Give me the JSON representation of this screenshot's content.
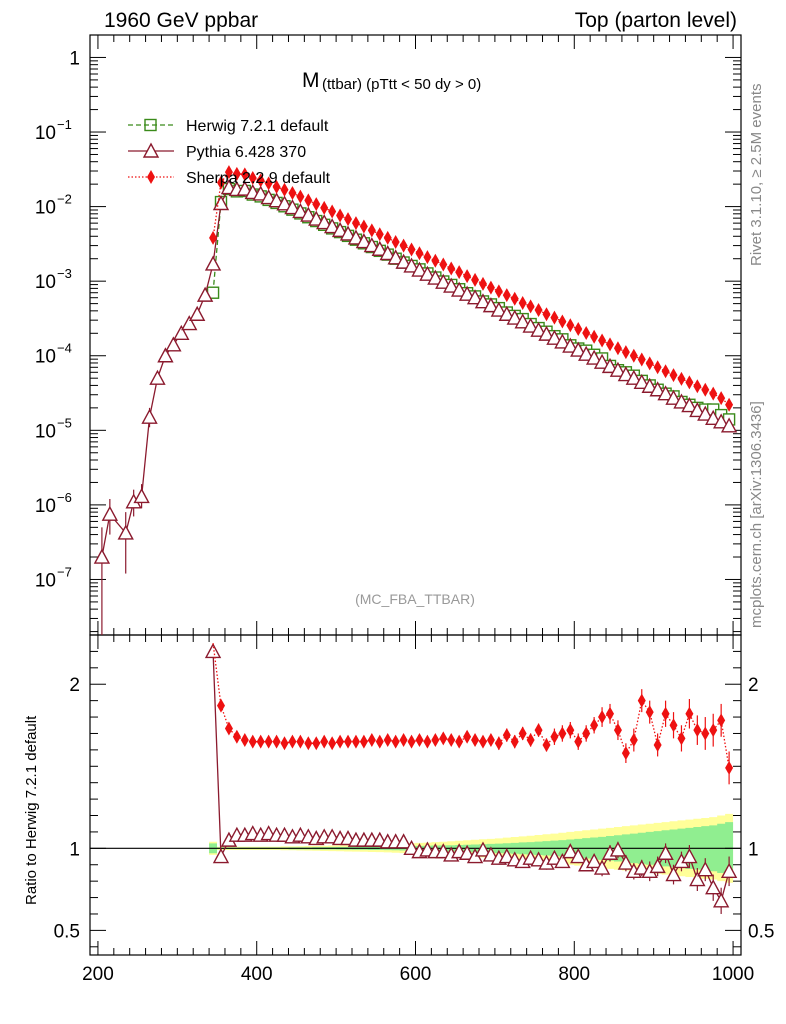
{
  "header": {
    "left": "1960 GeV ppbar",
    "right": "Top (parton level)"
  },
  "side_text": {
    "top": "Rivet 3.1.10, ≥ 2.5M events",
    "bottom": "mcplots.cern.ch [arXiv:1306.3436]"
  },
  "plot_title": {
    "main": "M",
    "sub": "(ttbar)  (pTtt < 50 dy > 0)"
  },
  "watermark": "(MC_FBA_TTBAR)",
  "ratio_ylabel": "Ratio to Herwig 7.2.1 default",
  "colors": {
    "herwig": "#3a8a1a",
    "pythia": "#8b1a2e",
    "sherpa": "#ee1111",
    "band_green": "#90ee90",
    "band_yellow": "#ffff99"
  },
  "chart_data": {
    "type": "line",
    "x_tick_labels": [
      "200",
      "400",
      "600",
      "800",
      "1000"
    ],
    "xlim": [
      190,
      1010
    ],
    "main": {
      "scale": "log",
      "ylim": [
        1.8e-08,
        2.0
      ],
      "y_tick_labels": [
        {
          "value": 1,
          "base": "1",
          "exp": ""
        },
        {
          "value": 0.1,
          "base": "10",
          "exp": "−1"
        },
        {
          "value": 0.01,
          "base": "10",
          "exp": "−2"
        },
        {
          "value": 0.001,
          "base": "10",
          "exp": "−3"
        },
        {
          "value": 0.0001,
          "base": "10",
          "exp": "−4"
        },
        {
          "value": 1e-05,
          "base": "10",
          "exp": "−5"
        },
        {
          "value": 1e-06,
          "base": "10",
          "exp": "−6"
        },
        {
          "value": 1e-07,
          "base": "10",
          "exp": "−7"
        }
      ]
    },
    "ratio": {
      "scale": "linear",
      "ylim": [
        0.35,
        2.3
      ],
      "y_tick_labels": [
        {
          "value": 2,
          "label": "2"
        },
        {
          "value": 1,
          "label": "1"
        },
        {
          "value": 0.5,
          "label": "0.5"
        }
      ]
    },
    "legend": [
      "Herwig 7.2.1 default",
      "Pythia 6.428 370",
      "Sherpa 2.2.9 default"
    ],
    "series": [
      {
        "name": "Pythia 6.428 370",
        "key": "pythia",
        "marker": "triangle",
        "x": [
          205,
          215,
          235,
          245,
          255,
          265,
          275,
          285,
          295,
          305,
          315,
          325,
          335,
          345,
          355,
          365,
          375,
          385,
          395,
          405,
          415,
          425,
          435,
          445,
          455,
          465,
          475,
          485,
          495,
          505,
          515,
          525,
          535,
          545,
          555,
          565,
          575,
          585,
          595,
          605,
          615,
          625,
          635,
          645,
          655,
          665,
          675,
          685,
          695,
          705,
          715,
          725,
          735,
          745,
          755,
          765,
          775,
          785,
          795,
          805,
          815,
          825,
          835,
          845,
          855,
          865,
          875,
          885,
          895,
          905,
          915,
          925,
          935,
          945,
          955,
          965,
          975,
          985,
          995
        ],
        "y": [
          2e-07,
          7.5e-07,
          4.2e-07,
          1.1e-06,
          1.3e-06,
          1.5e-05,
          5e-05,
          0.0001,
          0.00014,
          0.0002,
          0.00027,
          0.00036,
          0.00065,
          0.0017,
          0.011,
          0.018,
          0.017,
          0.0172,
          0.0155,
          0.0148,
          0.0132,
          0.012,
          0.0109,
          0.0097,
          0.0086,
          0.0077,
          0.0068,
          0.0061,
          0.0054,
          0.0048,
          0.0043,
          0.0038,
          0.0034,
          0.003,
          0.00268,
          0.00235,
          0.00206,
          0.0018,
          0.0016,
          0.00141,
          0.00124,
          0.0011,
          0.00097,
          0.00086,
          0.00076,
          0.00067,
          0.0006,
          0.00053,
          0.00047,
          0.00041,
          0.00036,
          0.00032,
          0.000285,
          0.00025,
          0.00022,
          0.000195,
          0.000172,
          0.000153,
          0.000135,
          0.000119,
          0.000105,
          9.3e-05,
          8.2e-05,
          7.2e-05,
          6.4e-05,
          5.6e-05,
          5e-05,
          4.4e-05,
          3.9e-05,
          3.5e-05,
          3.1e-05,
          2.7e-05,
          2.4e-05,
          2.15e-05,
          1.85e-05,
          1.65e-05,
          1.45e-05,
          1.3e-05,
          1.15e-05
        ],
        "ratio_x": [
          345,
          355,
          365,
          375,
          385,
          395,
          405,
          415,
          425,
          435,
          445,
          455,
          465,
          475,
          485,
          495,
          505,
          515,
          525,
          535,
          545,
          555,
          565,
          575,
          585,
          595,
          605,
          615,
          625,
          635,
          645,
          655,
          665,
          675,
          685,
          695,
          705,
          715,
          725,
          735,
          745,
          755,
          765,
          775,
          785,
          795,
          805,
          815,
          825,
          835,
          845,
          855,
          865,
          875,
          885,
          895,
          905,
          915,
          925,
          935,
          945,
          955,
          965,
          975,
          985,
          995
        ],
        "ratio": [
          2.2,
          0.95,
          1.05,
          1.08,
          1.08,
          1.09,
          1.08,
          1.09,
          1.08,
          1.08,
          1.07,
          1.08,
          1.07,
          1.06,
          1.07,
          1.07,
          1.06,
          1.06,
          1.05,
          1.05,
          1.05,
          1.05,
          1.04,
          1.04,
          1.04,
          1.0,
          0.98,
          0.99,
          0.98,
          0.98,
          0.96,
          0.98,
          0.97,
          0.95,
          0.99,
          0.96,
          0.94,
          0.95,
          0.93,
          0.92,
          0.94,
          0.93,
          0.91,
          0.94,
          0.92,
          0.98,
          0.95,
          0.9,
          0.92,
          0.88,
          0.97,
          0.99,
          0.91,
          0.86,
          0.88,
          0.86,
          0.89,
          0.97,
          0.84,
          0.92,
          0.95,
          0.81,
          0.87,
          0.76,
          0.68,
          0.86
        ],
        "ratio_err": [
          0,
          0.02,
          0.02,
          0.02,
          0.02,
          0.02,
          0.02,
          0.02,
          0.02,
          0.02,
          0.02,
          0.02,
          0.02,
          0.02,
          0.02,
          0.02,
          0.02,
          0.02,
          0.02,
          0.02,
          0.02,
          0.02,
          0.02,
          0.02,
          0.02,
          0.02,
          0.02,
          0.02,
          0.02,
          0.02,
          0.03,
          0.03,
          0.03,
          0.03,
          0.03,
          0.03,
          0.03,
          0.03,
          0.03,
          0.03,
          0.03,
          0.04,
          0.04,
          0.04,
          0.04,
          0.04,
          0.04,
          0.04,
          0.04,
          0.05,
          0.05,
          0.05,
          0.05,
          0.05,
          0.05,
          0.06,
          0.06,
          0.06,
          0.06,
          0.06,
          0.07,
          0.07,
          0.07,
          0.08,
          0.08,
          0.09
        ]
      },
      {
        "name": "Herwig 7.2.1 default",
        "key": "herwig",
        "marker": "square",
        "x": [
          345,
          355,
          365,
          375,
          385,
          395,
          405,
          415,
          425,
          435,
          445,
          455,
          465,
          475,
          485,
          495,
          505,
          515,
          525,
          535,
          545,
          555,
          565,
          575,
          585,
          595,
          605,
          615,
          625,
          635,
          645,
          655,
          665,
          675,
          685,
          695,
          705,
          715,
          725,
          735,
          745,
          755,
          765,
          775,
          785,
          795,
          805,
          815,
          825,
          835,
          845,
          855,
          865,
          875,
          885,
          895,
          905,
          915,
          925,
          935,
          945,
          955,
          965,
          975,
          985,
          995
        ],
        "y": [
          0.0007,
          0.0115,
          0.0172,
          0.016,
          0.0162,
          0.0145,
          0.0137,
          0.0123,
          0.0112,
          0.0101,
          0.0091,
          0.0081,
          0.0072,
          0.0064,
          0.0057,
          0.0051,
          0.00455,
          0.00405,
          0.0036,
          0.00322,
          0.00287,
          0.00255,
          0.00227,
          0.002,
          0.00178,
          0.0016,
          0.00144,
          0.00127,
          0.00112,
          0.00099,
          0.00089,
          0.00078,
          0.00069,
          0.000625,
          0.000535,
          0.000488,
          0.000435,
          0.00038,
          0.000342,
          0.00031,
          0.000266,
          0.000235,
          0.00021,
          0.000183,
          0.000166,
          0.000138,
          0.000125,
          0.000117,
          0.000103,
          9.2e-05,
          7.3e-05,
          6.4e-05,
          6e-05,
          5.4e-05,
          4.6e-05,
          4e-05,
          3.5e-05,
          3.1e-05,
          2.85e-05,
          2.4e-05,
          2.2e-05,
          2e-05,
          1.9e-05,
          1.9e-05,
          1.6e-05,
          1.4e-05
        ],
        "band_x": [
          345,
          355,
          365,
          375,
          385,
          395,
          405,
          415,
          425,
          435,
          445,
          455,
          465,
          475,
          485,
          495,
          505,
          515,
          525,
          535,
          545,
          555,
          565,
          575,
          585,
          595,
          605,
          615,
          625,
          635,
          645,
          655,
          665,
          675,
          685,
          695,
          705,
          715,
          725,
          735,
          745,
          755,
          765,
          775,
          785,
          795,
          805,
          815,
          825,
          835,
          845,
          855,
          865,
          875,
          885,
          895,
          905,
          915,
          925,
          935,
          945,
          955,
          965,
          975,
          985,
          995
        ],
        "band_stat": [
          0.03,
          0.005,
          0.005,
          0.005,
          0.005,
          0.005,
          0.005,
          0.005,
          0.005,
          0.005,
          0.006,
          0.006,
          0.006,
          0.007,
          0.007,
          0.007,
          0.008,
          0.008,
          0.009,
          0.009,
          0.01,
          0.01,
          0.011,
          0.012,
          0.013,
          0.014,
          0.015,
          0.016,
          0.017,
          0.018,
          0.019,
          0.02,
          0.022,
          0.023,
          0.025,
          0.027,
          0.029,
          0.031,
          0.033,
          0.036,
          0.038,
          0.041,
          0.044,
          0.047,
          0.05,
          0.054,
          0.058,
          0.062,
          0.066,
          0.07,
          0.075,
          0.08,
          0.085,
          0.09,
          0.095,
          0.1,
          0.105,
          0.11,
          0.115,
          0.12,
          0.125,
          0.13,
          0.135,
          0.14,
          0.15,
          0.16
        ],
        "band_tot": [
          0.04,
          0.01,
          0.01,
          0.01,
          0.01,
          0.01,
          0.01,
          0.01,
          0.01,
          0.012,
          0.012,
          0.013,
          0.014,
          0.015,
          0.016,
          0.017,
          0.018,
          0.019,
          0.02,
          0.021,
          0.022,
          0.023,
          0.025,
          0.027,
          0.029,
          0.031,
          0.033,
          0.035,
          0.038,
          0.04,
          0.043,
          0.046,
          0.049,
          0.052,
          0.055,
          0.058,
          0.061,
          0.065,
          0.069,
          0.073,
          0.077,
          0.081,
          0.086,
          0.09,
          0.095,
          0.1,
          0.105,
          0.11,
          0.115,
          0.12,
          0.125,
          0.13,
          0.135,
          0.14,
          0.145,
          0.15,
          0.155,
          0.16,
          0.165,
          0.17,
          0.175,
          0.18,
          0.185,
          0.19,
          0.2,
          0.21
        ]
      },
      {
        "name": "Sherpa 2.2.9 default",
        "key": "sherpa",
        "marker": "diamond",
        "x": [
          345,
          355,
          365,
          375,
          385,
          395,
          405,
          415,
          425,
          435,
          445,
          455,
          465,
          475,
          485,
          495,
          505,
          515,
          525,
          535,
          545,
          555,
          565,
          575,
          585,
          595,
          605,
          615,
          625,
          635,
          645,
          655,
          665,
          675,
          685,
          695,
          705,
          715,
          725,
          735,
          745,
          755,
          765,
          775,
          785,
          795,
          805,
          815,
          825,
          835,
          845,
          855,
          865,
          875,
          885,
          895,
          905,
          915,
          925,
          935,
          945,
          955,
          965,
          975,
          985,
          995
        ],
        "y": [
          0.0038,
          0.021,
          0.029,
          0.0275,
          0.027,
          0.0242,
          0.0225,
          0.0205,
          0.0184,
          0.0168,
          0.0152,
          0.0136,
          0.0121,
          0.0108,
          0.0096,
          0.0086,
          0.0076,
          0.0068,
          0.006,
          0.0054,
          0.0048,
          0.00425,
          0.0038,
          0.00335,
          0.003,
          0.00266,
          0.00237,
          0.0021,
          0.00188,
          0.00167,
          0.00148,
          0.00132,
          0.00117,
          0.00104,
          0.00092,
          0.00082,
          0.00073,
          0.00065,
          0.00058,
          0.00051,
          0.00046,
          0.00041,
          0.00036,
          0.000325,
          0.000288,
          0.000256,
          0.000228,
          0.000202,
          0.00018,
          0.00016,
          0.000142,
          0.000126,
          0.000112,
          0.0001,
          8.9e-05,
          7.9e-05,
          7e-05,
          6.2e-05,
          5.5e-05,
          4.9e-05,
          4.4e-05,
          3.9e-05,
          3.5e-05,
          3.1e-05,
          2.7e-05,
          2.2e-05
        ],
        "ratio_x": [
          355,
          365,
          375,
          385,
          395,
          405,
          415,
          425,
          435,
          445,
          455,
          465,
          475,
          485,
          495,
          505,
          515,
          525,
          535,
          545,
          555,
          565,
          575,
          585,
          595,
          605,
          615,
          625,
          635,
          645,
          655,
          665,
          675,
          685,
          695,
          705,
          715,
          725,
          735,
          745,
          755,
          765,
          775,
          785,
          795,
          805,
          815,
          825,
          835,
          845,
          855,
          865,
          875,
          885,
          895,
          905,
          915,
          925,
          935,
          945,
          955,
          965,
          975,
          985,
          995
        ],
        "ratio": [
          1.87,
          1.73,
          1.68,
          1.66,
          1.65,
          1.65,
          1.65,
          1.65,
          1.64,
          1.65,
          1.65,
          1.64,
          1.64,
          1.65,
          1.64,
          1.65,
          1.65,
          1.65,
          1.65,
          1.66,
          1.65,
          1.66,
          1.65,
          1.66,
          1.65,
          1.66,
          1.65,
          1.66,
          1.67,
          1.66,
          1.65,
          1.68,
          1.66,
          1.65,
          1.66,
          1.64,
          1.69,
          1.65,
          1.7,
          1.66,
          1.72,
          1.63,
          1.68,
          1.7,
          1.72,
          1.65,
          1.7,
          1.75,
          1.8,
          1.82,
          1.72,
          1.58,
          1.66,
          1.9,
          1.83,
          1.63,
          1.82,
          1.75,
          1.67,
          1.82,
          1.72,
          1.7,
          1.72,
          1.78,
          1.49
        ],
        "ratio_err": [
          0.02,
          0.02,
          0.02,
          0.02,
          0.02,
          0.02,
          0.02,
          0.02,
          0.02,
          0.02,
          0.02,
          0.02,
          0.02,
          0.02,
          0.02,
          0.02,
          0.02,
          0.02,
          0.02,
          0.02,
          0.02,
          0.02,
          0.02,
          0.02,
          0.02,
          0.03,
          0.03,
          0.03,
          0.03,
          0.03,
          0.03,
          0.03,
          0.03,
          0.03,
          0.03,
          0.04,
          0.04,
          0.04,
          0.04,
          0.04,
          0.04,
          0.04,
          0.05,
          0.05,
          0.05,
          0.05,
          0.05,
          0.05,
          0.06,
          0.06,
          0.06,
          0.06,
          0.07,
          0.07,
          0.07,
          0.07,
          0.08,
          0.08,
          0.08,
          0.09,
          0.09,
          0.1,
          0.1,
          0.1,
          0.1
        ]
      }
    ]
  }
}
